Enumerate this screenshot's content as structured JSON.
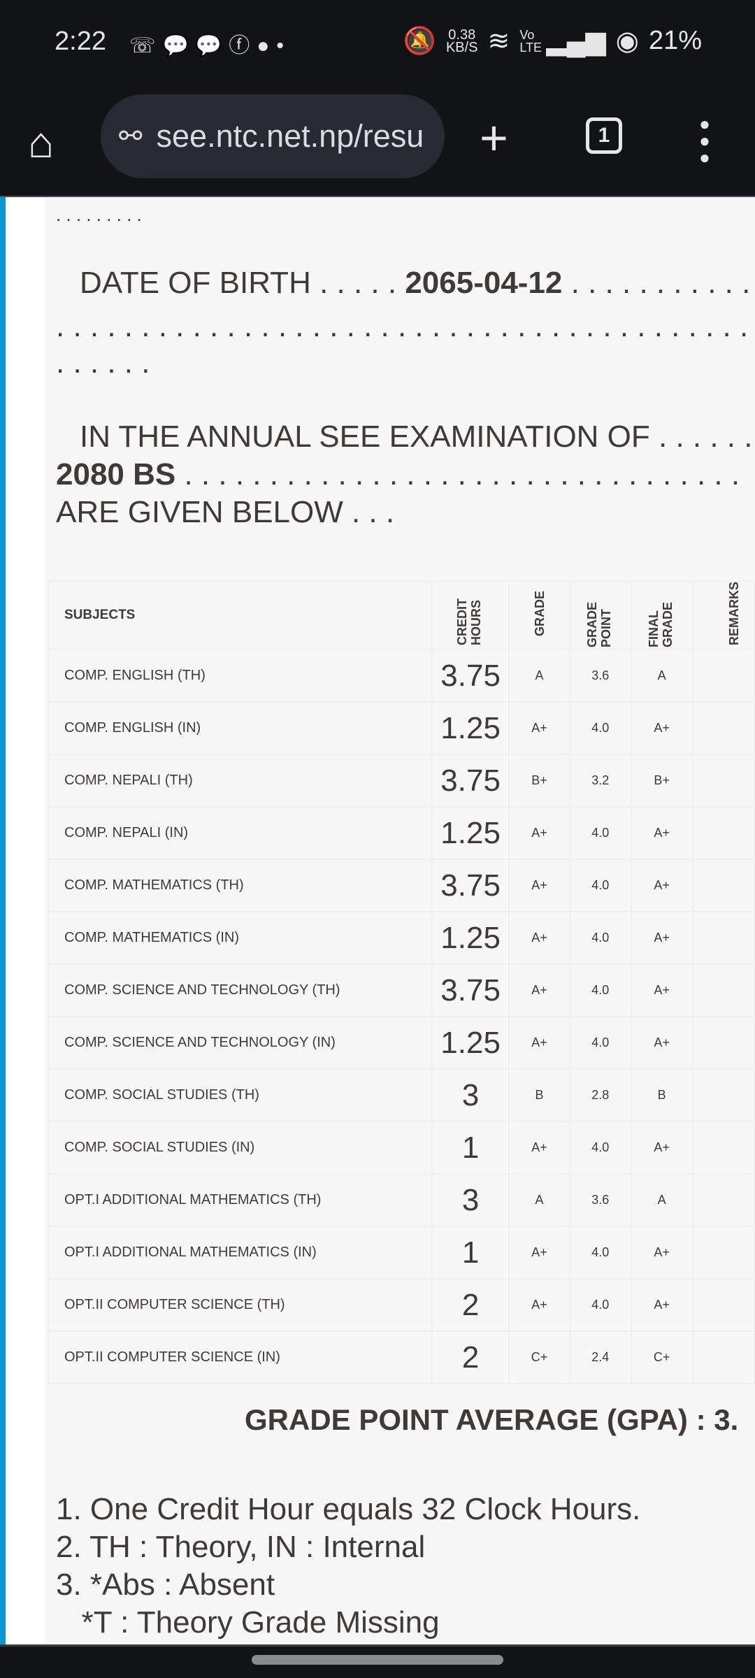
{
  "status": {
    "time": "2:22",
    "notif_icons": [
      "missed-call-icon",
      "messenger-icon",
      "messenger-icon",
      "facebook-icon",
      "facebook-icon",
      "dot-icon"
    ],
    "speed_value": "0.38",
    "speed_unit": "KB/S",
    "network": "Vo LTE",
    "battery": "21%"
  },
  "browser": {
    "url": "see.ntc.net.np/resu",
    "tab_count": "1"
  },
  "content": {
    "dots_top": ". . . . . . . . .",
    "dob_label": "DATE OF BIRTH . . . . .",
    "dob_value": "2065-04-12",
    "dob_trail": ". . . . . . . . . . .",
    "dots_line": ". . . . . . . . . . . . . . . . . . . . . . . . . . . . . . . . . . . . . . . . . . . .",
    "dots_short": ". . . . . .",
    "exam_line": "IN THE ANNUAL SEE EXAMINATION OF . . . . . .",
    "year": "2080 BS",
    "year_trail": ". . . . . . . . . . . . . . . . . . . . . . . . . . . . . . . . .",
    "given_below": "ARE GIVEN BELOW . . .",
    "headers": {
      "subjects": "SUBJECTS",
      "credit": "CREDIT HOURS",
      "grade": "GRADE",
      "grade_point": "GRADE POINT",
      "final_grade": "FINAL GRADE",
      "remarks": "REMARKS"
    },
    "rows": [
      {
        "subject": "COMP. ENGLISH (TH)",
        "credit": "3.75",
        "grade": "A",
        "gp": "3.6",
        "final": "A"
      },
      {
        "subject": "COMP. ENGLISH (IN)",
        "credit": "1.25",
        "grade": "A+",
        "gp": "4.0",
        "final": "A+"
      },
      {
        "subject": "COMP. NEPALI (TH)",
        "credit": "3.75",
        "grade": "B+",
        "gp": "3.2",
        "final": "B+"
      },
      {
        "subject": "COMP. NEPALI (IN)",
        "credit": "1.25",
        "grade": "A+",
        "gp": "4.0",
        "final": "A+"
      },
      {
        "subject": "COMP. MATHEMATICS (TH)",
        "credit": "3.75",
        "grade": "A+",
        "gp": "4.0",
        "final": "A+"
      },
      {
        "subject": "COMP. MATHEMATICS (IN)",
        "credit": "1.25",
        "grade": "A+",
        "gp": "4.0",
        "final": "A+"
      },
      {
        "subject": "COMP. SCIENCE AND TECHNOLOGY (TH)",
        "credit": "3.75",
        "grade": "A+",
        "gp": "4.0",
        "final": "A+"
      },
      {
        "subject": "COMP. SCIENCE AND TECHNOLOGY (IN)",
        "credit": "1.25",
        "grade": "A+",
        "gp": "4.0",
        "final": "A+"
      },
      {
        "subject": "COMP. SOCIAL STUDIES (TH)",
        "credit": "3",
        "grade": "B",
        "gp": "2.8",
        "final": "B"
      },
      {
        "subject": "COMP. SOCIAL STUDIES (IN)",
        "credit": "1",
        "grade": "A+",
        "gp": "4.0",
        "final": "A+"
      },
      {
        "subject": "OPT.I ADDITIONAL MATHEMATICS (TH)",
        "credit": "3",
        "grade": "A",
        "gp": "3.6",
        "final": "A"
      },
      {
        "subject": "OPT.I ADDITIONAL MATHEMATICS (IN)",
        "credit": "1",
        "grade": "A+",
        "gp": "4.0",
        "final": "A+"
      },
      {
        "subject": "OPT.II COMPUTER SCIENCE (TH)",
        "credit": "2",
        "grade": "A+",
        "gp": "4.0",
        "final": "A+"
      },
      {
        "subject": "OPT.II COMPUTER SCIENCE (IN)",
        "credit": "2",
        "grade": "C+",
        "gp": "2.4",
        "final": "C+"
      }
    ],
    "gpa": "GRADE POINT AVERAGE (GPA) : 3.",
    "notes": [
      "1. One Credit Hour equals 32 Clock Hours.",
      "2. TH : Theory, IN : Internal",
      "3. *Abs : Absent",
      "   *T : Theory Grade Missing"
    ]
  }
}
